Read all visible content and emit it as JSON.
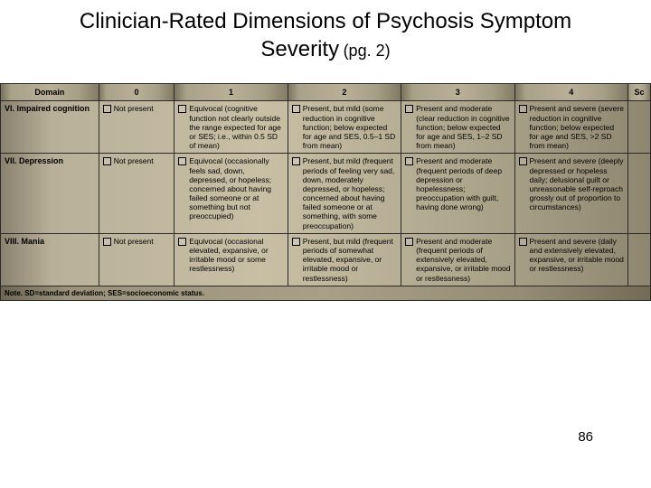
{
  "title": {
    "line1": "Clinician-Rated Dimensions of Psychosis Symptom",
    "line2_main": "Severity",
    "line2_sub": "(pg. 2)"
  },
  "headers": [
    "Domain",
    "0",
    "1",
    "2",
    "3",
    "4",
    "Sc"
  ],
  "rows": [
    {
      "domain": "VI. Impaired cognition",
      "c0": "Not present",
      "c1": "Equivocal (cognitive function not clearly outside the range expected for age or SES; i.e., within 0.5 SD of mean)",
      "c2": "Present, but mild (some reduction in cognitive function; below expected for age and SES, 0.5–1 SD from mean)",
      "c3": "Present and moderate (clear reduction in cognitive function; below expected for age and SES, 1–2 SD from mean)",
      "c4": "Present and severe (severe reduction in cognitive function; below expected for age and SES, >2 SD from mean)"
    },
    {
      "domain": "VII. Depression",
      "c0": "Not present",
      "c1": "Equivocal (occasionally feels sad, down, depressed, or hopeless; concerned about having failed someone or at something but not preoccupied)",
      "c2": "Present, but mild (frequent periods of feeling very sad, down, moderately depressed, or hopeless; concerned about having failed someone or at something, with some preoccupation)",
      "c3": "Present and moderate (frequent periods of deep depression or hopelessness; preoccupation with guilt, having done wrong)",
      "c4": "Present and severe (deeply depressed or hopeless daily; delusional guilt or unreasonable self-reproach grossly out of proportion to circumstances)"
    },
    {
      "domain": "VIII. Mania",
      "c0": "Not present",
      "c1": "Equivocal (occasional elevated, expansive, or irritable mood or some restlessness)",
      "c2": "Present, but mild (frequent periods of somewhat elevated, expansive, or irritable mood or restlessness)",
      "c3": "Present and moderate (frequent periods of extensively elevated, expansive, or irritable mood or restlessness)",
      "c4": "Present and severe (daily and extensively elevated, expansive, or irritable mood or restlessness)"
    }
  ],
  "note": "Note. SD=standard deviation; SES=socioeconomic status.",
  "page_number": "86",
  "style": {
    "background": "#ffffff",
    "table_bg_gradient": [
      "#8a8270",
      "#c8bfa5",
      "#8e866f"
    ],
    "border_color": "#2a2a2a",
    "title_fontsize": 24,
    "sub_fontsize": 18,
    "body_fontsize": 8.5,
    "header_fontsize": 9
  }
}
